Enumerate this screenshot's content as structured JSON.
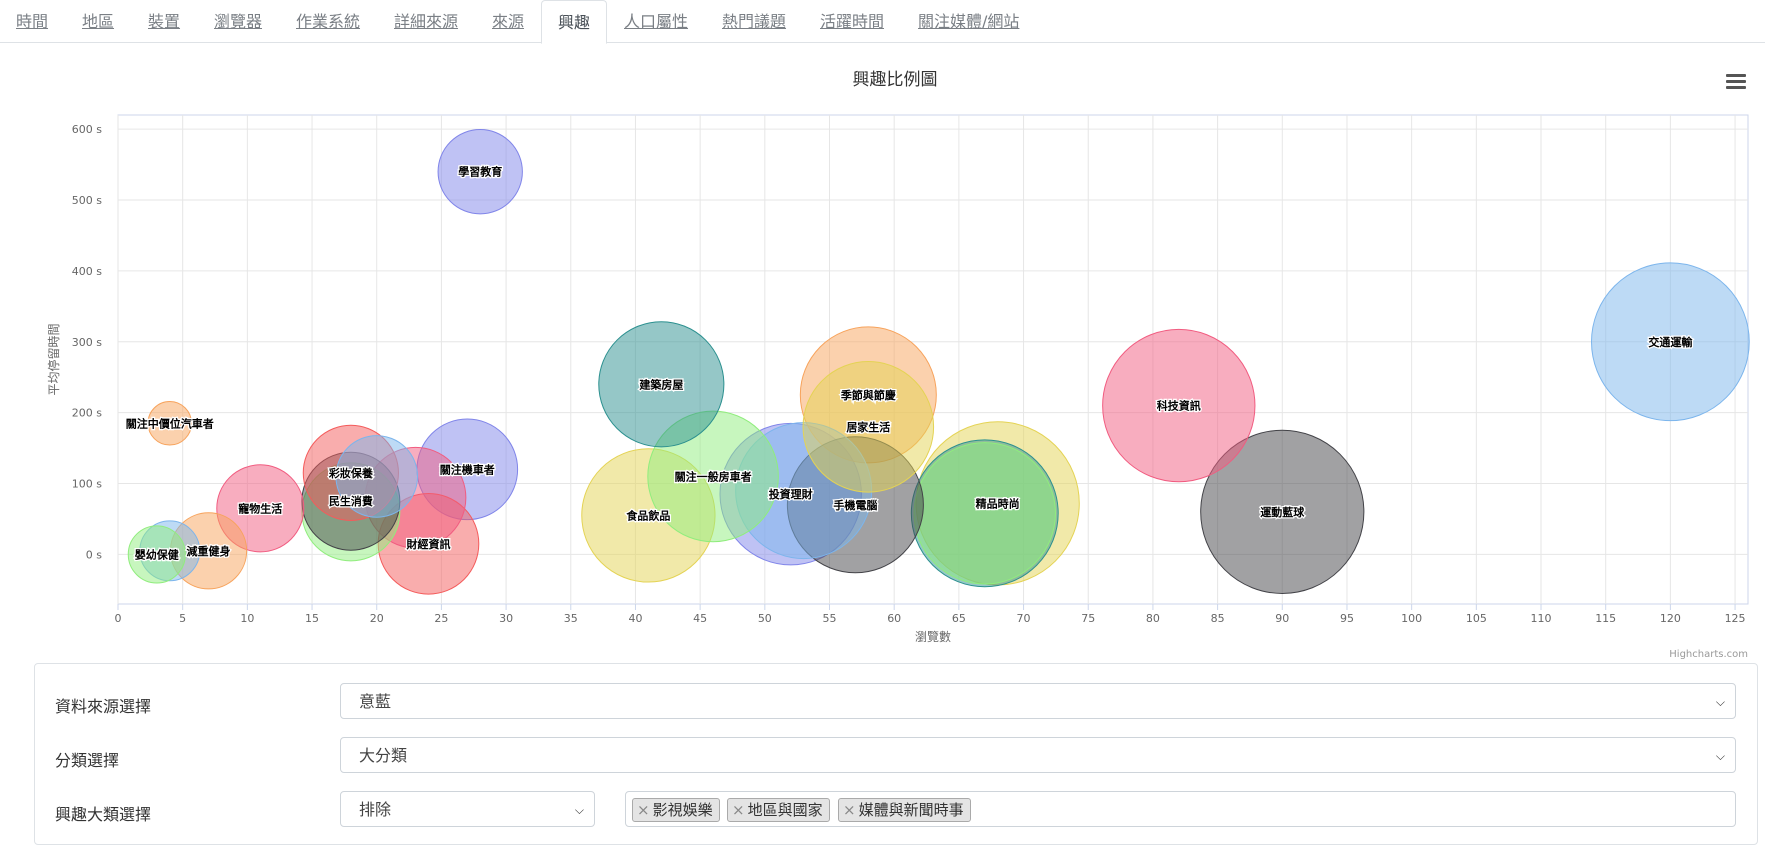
{
  "tabs": [
    {
      "label": "時間",
      "active": false
    },
    {
      "label": "地區",
      "active": false
    },
    {
      "label": "裝置",
      "active": false
    },
    {
      "label": "瀏覽器",
      "active": false
    },
    {
      "label": "作業系統",
      "active": false
    },
    {
      "label": "詳細來源",
      "active": false
    },
    {
      "label": "來源",
      "active": false
    },
    {
      "label": "興趣",
      "active": true
    },
    {
      "label": "人口屬性",
      "active": false
    },
    {
      "label": "熱門議題",
      "active": false
    },
    {
      "label": "活躍時間",
      "active": false
    },
    {
      "label": "關注媒體/網站",
      "active": false
    }
  ],
  "credits": "Highcharts.com",
  "chart_data": {
    "type": "scatter",
    "subtype": "bubble",
    "title": "興趣比例圖",
    "xlabel": "瀏覽數",
    "ylabel": "平均停留時間",
    "xlim": [
      0,
      126
    ],
    "ylim": [
      -70,
      620
    ],
    "xticks": [
      0,
      5,
      10,
      15,
      20,
      25,
      30,
      35,
      40,
      45,
      50,
      55,
      60,
      65,
      70,
      75,
      80,
      85,
      90,
      95,
      100,
      105,
      110,
      115,
      120,
      125
    ],
    "yticks": [
      0,
      100,
      200,
      300,
      400,
      500,
      600
    ],
    "ytick_suffix": " s",
    "grid": true,
    "legend": "none",
    "points": [
      {
        "name": "交通運輸",
        "x": 120,
        "y": 300,
        "z": 116,
        "color": "#7cb5ec"
      },
      {
        "name": "科技資訊",
        "x": 82,
        "y": 210,
        "z": 112,
        "color": "#f15c80"
      },
      {
        "name": "運動藍球",
        "x": 90,
        "y": 60,
        "z": 120,
        "color": "#434348"
      },
      {
        "name": "精品時尚",
        "x": 68,
        "y": 72,
        "z": 120,
        "color": "#e4d354"
      },
      {
        "name": "",
        "x": 67,
        "y": 58,
        "z": 108,
        "color": "#2b908f"
      },
      {
        "name": "",
        "x": 67,
        "y": 58,
        "z": 104,
        "color": "#90ed7d"
      },
      {
        "name": "季節與節慶",
        "x": 58,
        "y": 225,
        "z": 100,
        "color": "#f7a35c"
      },
      {
        "name": "居家生活",
        "x": 58,
        "y": 180,
        "z": 96,
        "color": "#e4d354"
      },
      {
        "name": "手機電腦",
        "x": 57,
        "y": 70,
        "z": 100,
        "color": "#434348"
      },
      {
        "name": "",
        "x": 53,
        "y": 90,
        "z": 100,
        "color": "#7cb5ec"
      },
      {
        "name": "投資理財",
        "x": 52,
        "y": 85,
        "z": 104,
        "color": "#8085e9"
      },
      {
        "name": "關注一般房車者",
        "x": 46,
        "y": 110,
        "z": 96,
        "color": "#90ed7d"
      },
      {
        "name": "食品飲品",
        "x": 41,
        "y": 55,
        "z": 98,
        "color": "#e4d354"
      },
      {
        "name": "建築房屋",
        "x": 42,
        "y": 240,
        "z": 92,
        "color": "#2b908f"
      },
      {
        "name": "學習教育",
        "x": 28,
        "y": 540,
        "z": 62,
        "color": "#8085e9"
      },
      {
        "name": "關注機車者",
        "x": 27,
        "y": 120,
        "z": 74,
        "color": "#8085e9"
      },
      {
        "name": "財經資訊",
        "x": 24,
        "y": 15,
        "z": 74,
        "color": "#f45b5b"
      },
      {
        "name": "",
        "x": 23,
        "y": 80,
        "z": 74,
        "color": "#f15c80"
      },
      {
        "name": "",
        "x": 20,
        "y": 110,
        "z": 60,
        "color": "#7cb5ec"
      },
      {
        "name": "彩妝保養",
        "x": 18,
        "y": 115,
        "z": 70,
        "color": "#f45b5b"
      },
      {
        "name": "",
        "x": 18,
        "y": 60,
        "z": 72,
        "color": "#90ed7d"
      },
      {
        "name": "民生消費",
        "x": 18,
        "y": 75,
        "z": 72,
        "color": "#434348"
      },
      {
        "name": "寵物生活",
        "x": 11,
        "y": 65,
        "z": 64,
        "color": "#f15c80"
      },
      {
        "name": "減重健身",
        "x": 7,
        "y": 5,
        "z": 56,
        "color": "#f7a35c"
      },
      {
        "name": "",
        "x": 4,
        "y": 5,
        "z": 44,
        "color": "#7cb5ec"
      },
      {
        "name": "嬰幼保健",
        "x": 3,
        "y": 0,
        "z": 42,
        "color": "#90ed7d"
      },
      {
        "name": "關注中價位汽車者",
        "x": 4,
        "y": 185,
        "z": 32,
        "color": "#f7a35c"
      }
    ]
  },
  "form": {
    "source_label": "資料來源選擇",
    "source_value": "意藍",
    "category_label": "分類選擇",
    "category_value": "大分類",
    "interest_label": "興趣大類選擇",
    "interest_mode": "排除",
    "tags": [
      "影視娛樂",
      "地區與國家",
      "媒體與新聞時事"
    ]
  }
}
